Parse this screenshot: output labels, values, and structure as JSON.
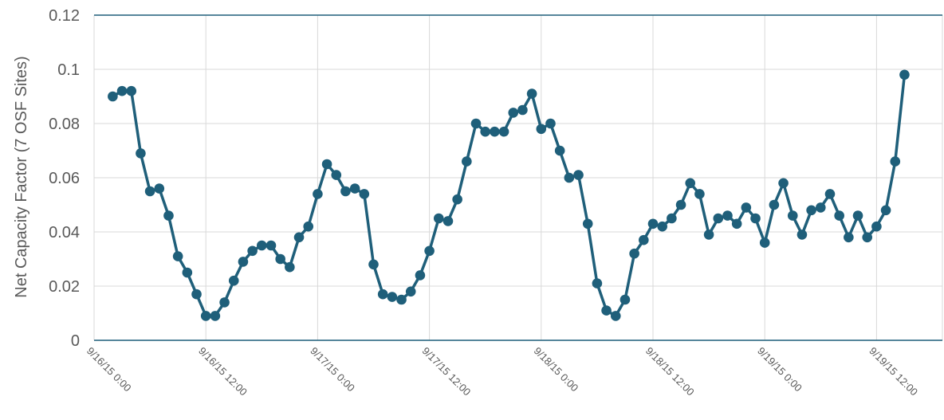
{
  "chart_data": {
    "type": "line",
    "title": "",
    "xlabel": "",
    "ylabel": "Net Capacity Factor (7 OSF Sites)",
    "ylim": [
      0,
      0.12
    ],
    "yticks": [
      "0",
      "0.02",
      "0.04",
      "0.06",
      "0.08",
      "0.1",
      "0.12"
    ],
    "xticks": [
      "9/16/15 0:00",
      "9/16/15 12:00",
      "9/17/15 0:00",
      "9/17/15 12:00",
      "9/18/15 0:00",
      "9/18/15 12:00",
      "9/19/15 0:00",
      "9/19/15 12:00"
    ],
    "x_unit": "hours",
    "x_start_offset": 2,
    "x_step": 1,
    "grid": true,
    "legend": "none",
    "line_color": "#1f5f7a",
    "series": [
      {
        "values": [
          0.09,
          0.092,
          0.092,
          0.069,
          0.055,
          0.056,
          0.046,
          0.031,
          0.025,
          0.017,
          0.009,
          0.009,
          0.014,
          0.022,
          0.029,
          0.033,
          0.035,
          0.035,
          0.03,
          0.027,
          0.038,
          0.042,
          0.054,
          0.065,
          0.061,
          0.055,
          0.056,
          0.054,
          0.028,
          0.017,
          0.016,
          0.015,
          0.018,
          0.024,
          0.033,
          0.045,
          0.044,
          0.052,
          0.066,
          0.08,
          0.077,
          0.077,
          0.077,
          0.084,
          0.085,
          0.091,
          0.078,
          0.08,
          0.07,
          0.06,
          0.061,
          0.043,
          0.021,
          0.011,
          0.009,
          0.015,
          0.032,
          0.037,
          0.043,
          0.042,
          0.045,
          0.05,
          0.058,
          0.054,
          0.039,
          0.045,
          0.046,
          0.043,
          0.049,
          0.045,
          0.036,
          0.05,
          0.058,
          0.046,
          0.039,
          0.048,
          0.049,
          0.054,
          0.046,
          0.038,
          0.046,
          0.038,
          0.042,
          0.048,
          0.066,
          0.098
        ]
      }
    ]
  }
}
